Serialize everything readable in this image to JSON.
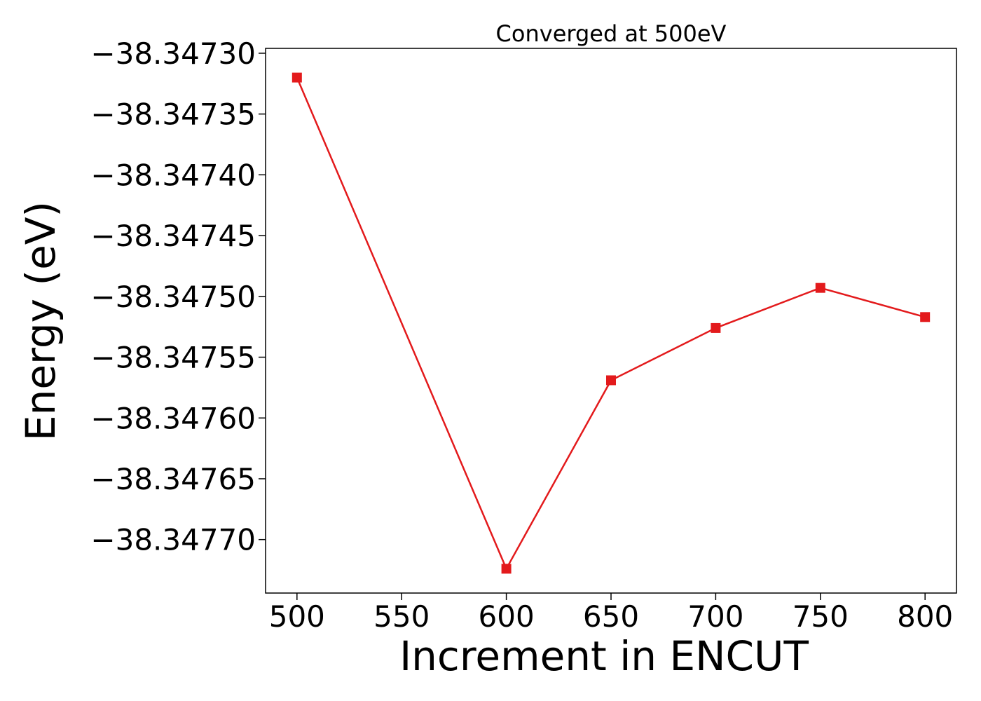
{
  "chart_data": {
    "type": "line",
    "title": "Converged at 500eV",
    "xlabel": "Increment in ENCUT",
    "ylabel": "Energy (eV)",
    "xlim": [
      485,
      815
    ],
    "ylim": [
      -38.347744,
      -38.347296
    ],
    "xticks": [
      500,
      550,
      600,
      650,
      700,
      750,
      800
    ],
    "yticks": [
      -38.3473,
      -38.34735,
      -38.3474,
      -38.34745,
      -38.3475,
      -38.34755,
      -38.3476,
      -38.34765,
      -38.3477
    ],
    "ytick_labels": [
      "−38.34730",
      "−38.34735",
      "−38.34740",
      "−38.34745",
      "−38.34750",
      "−38.34755",
      "−38.34760",
      "−38.34765",
      "−38.34770"
    ],
    "grid": false,
    "series": [
      {
        "color": "#e31a1c",
        "marker": "square",
        "x": [
          500,
          600,
          650,
          700,
          750,
          800
        ],
        "y": [
          -38.34732,
          -38.347724,
          -38.347569,
          -38.347526,
          -38.347493,
          -38.347517
        ]
      }
    ]
  }
}
